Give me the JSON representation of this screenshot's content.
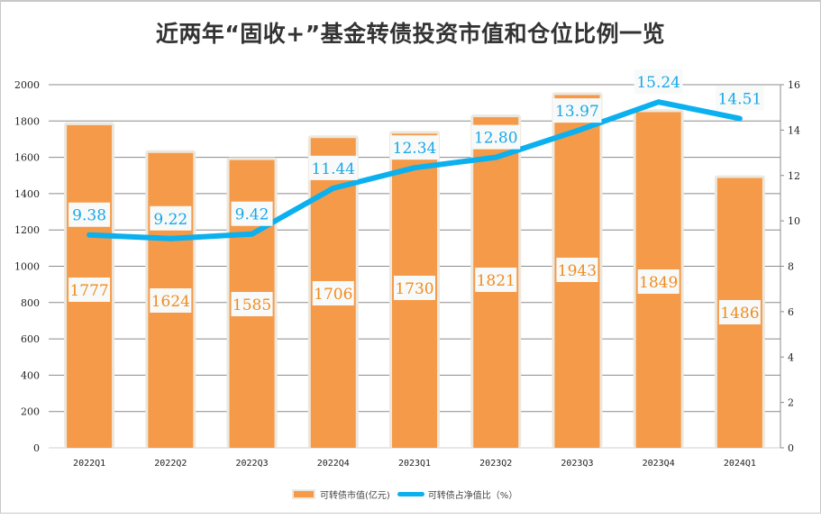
{
  "chart_data": {
    "type": "bar+line",
    "title": "近两年“固收+”基金转债投资市值和仓位比例一览",
    "categories": [
      "2022Q1",
      "2022Q2",
      "2022Q3",
      "2022Q4",
      "2023Q1",
      "2023Q2",
      "2023Q3",
      "2023Q4",
      "2024Q1"
    ],
    "series": [
      {
        "name": "可转债市值(亿元)",
        "type": "bar",
        "axis": "left",
        "color": "#f59a48",
        "values": [
          1777,
          1624,
          1585,
          1706,
          1730,
          1821,
          1943,
          1849,
          1486
        ]
      },
      {
        "name": "可转债占净值比（%）",
        "type": "line",
        "axis": "right",
        "color": "#0bb0ee",
        "values": [
          9.38,
          9.22,
          9.42,
          11.44,
          12.34,
          12.8,
          13.97,
          15.24,
          14.51
        ]
      }
    ],
    "bar_labels": [
      "1777",
      "1624",
      "1585",
      "1706",
      "1730",
      "1821",
      "1943",
      "1849",
      "1486"
    ],
    "line_labels": [
      "9.38",
      "9.22",
      "9.42",
      "11.44",
      "12.34",
      "12.80",
      "13.97",
      "15.24",
      "14.51"
    ],
    "y_left": {
      "min": 0,
      "max": 2000,
      "step": 200,
      "ticks": [
        "0",
        "200",
        "400",
        "600",
        "800",
        "1000",
        "1200",
        "1400",
        "1600",
        "1800",
        "2000"
      ]
    },
    "y_right": {
      "min": 0,
      "max": 16,
      "step": 2,
      "ticks": [
        "0",
        "2",
        "4",
        "6",
        "8",
        "10",
        "12",
        "14",
        "16"
      ]
    },
    "xlabel": "",
    "ylabel": "",
    "grid": true,
    "legend_position": "bottom"
  },
  "legend": {
    "bar_label": "可转债市值(亿元)",
    "line_label": "可转债占净值比（%）"
  }
}
